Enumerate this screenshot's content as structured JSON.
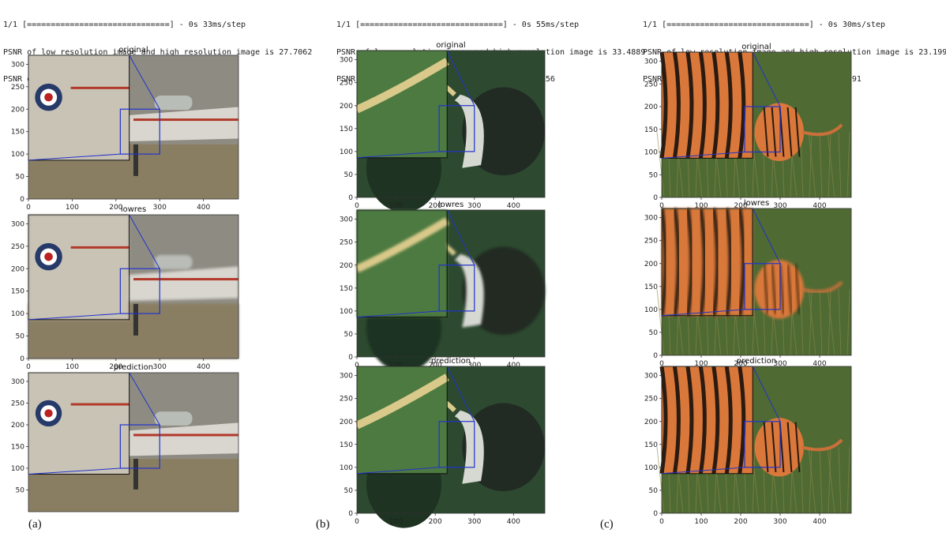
{
  "columns": [
    {
      "caption": "(a)",
      "log": [
        "1/1 [==============================] - 0s 33ms/step",
        "PSNR of low resolution image and high resolution image is 27.7062",
        "PSNR of predict and high resolution is 28.8643"
      ],
      "scene": "jet",
      "colors": {
        "bg": "#8e8c82",
        "ground": "#8a7e62",
        "inset": "#c9c3b6"
      },
      "panels": [
        {
          "title": "original",
          "yticks": [
            "300",
            "250",
            "200",
            "150",
            "100",
            "50",
            "0"
          ],
          "xticks": [
            "0",
            "100",
            "200",
            "300",
            "400"
          ]
        },
        {
          "title": "lowres",
          "yticks": [
            "300",
            "250",
            "200",
            "150",
            "100",
            "50",
            "0"
          ],
          "xticks": [
            "0",
            "100",
            "200",
            "300",
            "400"
          ]
        },
        {
          "title": "prediction",
          "yticks": [
            "300",
            "250",
            "200",
            "150",
            "100",
            "50"
          ],
          "xticks": []
        }
      ]
    },
    {
      "caption": "(b)",
      "log": [
        "1/1 [==============================] - 0s 55ms/step",
        "PSNR of low resolution image and high resolution image is 33.4889",
        "PSNR of predict and high resolution is 34.6156"
      ],
      "scene": "bird",
      "colors": {
        "bg": "#2d4a30",
        "ground": "#3c5e37",
        "inset": "#4d7a40"
      },
      "panels": [
        {
          "title": "original",
          "yticks": [
            "300",
            "250",
            "200",
            "150",
            "100",
            "50",
            "0"
          ],
          "xticks": [
            "0",
            "100",
            "200",
            "300",
            "400"
          ]
        },
        {
          "title": "lowres",
          "yticks": [
            "300",
            "250",
            "200",
            "150",
            "100",
            "50",
            "0"
          ],
          "xticks": [
            "0",
            "100",
            "200",
            "300",
            "400"
          ]
        },
        {
          "title": "prediction",
          "yticks": [
            "300",
            "250",
            "200",
            "150",
            "100",
            "50",
            "0"
          ],
          "xticks": [
            "0",
            "100",
            "200",
            "300",
            "400"
          ]
        }
      ]
    },
    {
      "caption": "(c)",
      "log": [
        "1/1 [==============================] - 0s 30ms/step",
        "PSNR of low resolution image and high resolution image is 23.1990",
        "PSNR of predict and high resolution is 23.7191"
      ],
      "scene": "tiger",
      "colors": {
        "bg": "#4f6a33",
        "ground": "#6e7a3e",
        "inset": "#d9783a"
      },
      "panels": [
        {
          "title": "original",
          "yticks": [
            "300",
            "250",
            "200",
            "150",
            "100",
            "50",
            "0"
          ],
          "xticks": [
            "0",
            "100",
            "200",
            "300",
            "400"
          ]
        },
        {
          "title": "lowres",
          "yticks": [
            "300",
            "250",
            "200",
            "150",
            "100",
            "50",
            "0"
          ],
          "xticks": [
            "0",
            "100",
            "200",
            "300",
            "400"
          ]
        },
        {
          "title": "prediction",
          "yticks": [
            "300",
            "250",
            "200",
            "150",
            "100",
            "50",
            "0"
          ],
          "xticks": [
            "0",
            "100",
            "200",
            "300",
            "400"
          ]
        }
      ]
    }
  ]
}
